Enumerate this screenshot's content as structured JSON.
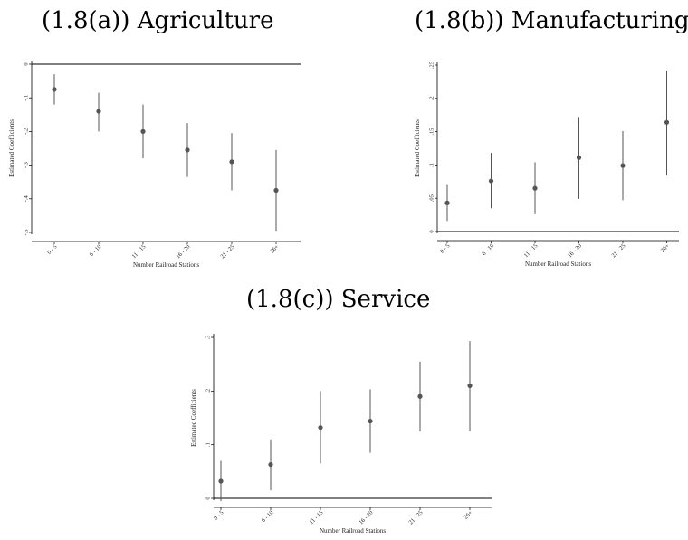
{
  "chart_data": [
    {
      "type": "scatter",
      "title": "(1.8(a)) Agriculture",
      "xlabel": "Number Railroad Stations",
      "ylabel": "Estimated Coefficients",
      "categories": [
        "0 - 5",
        "6 - 10",
        "11 - 15",
        "16 - 20",
        "21 - 25",
        "26+"
      ],
      "ylim": [
        -0.5,
        0
      ],
      "yticks": [
        "0",
        "-.1",
        "-.2",
        "-.3",
        "-.4",
        "-.5"
      ],
      "ytick_values": [
        0,
        -0.1,
        -0.2,
        -0.3,
        -0.4,
        -0.5
      ],
      "values": [
        -0.075,
        -0.14,
        -0.2,
        -0.255,
        -0.29,
        -0.375
      ],
      "ci_low": [
        -0.12,
        -0.2,
        -0.28,
        -0.335,
        -0.375,
        -0.495
      ],
      "ci_high": [
        -0.03,
        -0.085,
        -0.12,
        -0.175,
        -0.205,
        -0.255
      ],
      "grid": false
    },
    {
      "type": "scatter",
      "title": "(1.8(b)) Manufacturing",
      "xlabel": "Number Railroad Stations",
      "ylabel": "Estimated Coefficients",
      "categories": [
        "0 - 5",
        "6 - 10",
        "11 - 15",
        "16 - 20",
        "21 - 25",
        "26+"
      ],
      "ylim": [
        0,
        0.25
      ],
      "yticks": [
        "0",
        ".05",
        ".1",
        ".15",
        ".2",
        ".25"
      ],
      "ytick_values": [
        0,
        0.05,
        0.1,
        0.15,
        0.2,
        0.25
      ],
      "values": [
        0.043,
        0.076,
        0.065,
        0.111,
        0.099,
        0.164
      ],
      "ci_low": [
        0.016,
        0.035,
        0.026,
        0.049,
        0.047,
        0.084
      ],
      "ci_high": [
        0.071,
        0.118,
        0.104,
        0.172,
        0.151,
        0.242
      ],
      "grid": false
    },
    {
      "type": "scatter",
      "title": "(1.8(c)) Service",
      "xlabel": "Number Railroad Stations",
      "ylabel": "Estimated Coefficients",
      "categories": [
        "0 - 5",
        "6 - 10",
        "11 - 15",
        "16 - 20",
        "21 - 25",
        "26+"
      ],
      "ylim": [
        0,
        0.3
      ],
      "yticks": [
        "0",
        ".1",
        ".2",
        ".3"
      ],
      "ytick_values": [
        0,
        0.1,
        0.2,
        0.3
      ],
      "values": [
        0.032,
        0.063,
        0.132,
        0.144,
        0.19,
        0.21
      ],
      "ci_low": [
        -0.005,
        0.015,
        0.065,
        0.085,
        0.125,
        0.125
      ],
      "ci_high": [
        0.07,
        0.11,
        0.2,
        0.203,
        0.255,
        0.293
      ],
      "grid": false
    }
  ]
}
